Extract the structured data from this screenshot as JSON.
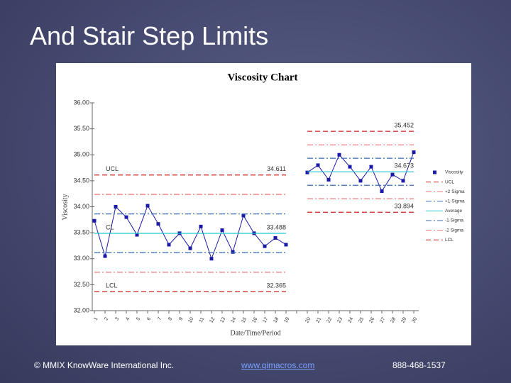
{
  "slide": {
    "title": "And Stair Step Limits"
  },
  "footer": {
    "copyright": "© MMIX KnowWare International Inc.",
    "url": "www.qimacros.com",
    "phone": "888-468-1537"
  },
  "chart_data": {
    "type": "line",
    "title": "Viscosity Chart",
    "x_label": "Date/Time/Period",
    "y_label": "Viscosity",
    "categories": [
      "1",
      "2",
      "3",
      "4",
      "5",
      "6",
      "7",
      "8",
      "9",
      "10",
      "11",
      "12",
      "13",
      "14",
      "15",
      "16",
      "17",
      "18",
      "19",
      null,
      "20",
      "21",
      "22",
      "23",
      "24",
      "25",
      "26",
      "27",
      "28",
      "29",
      "30"
    ],
    "ylim": [
      32,
      36
    ],
    "yticks": [
      {
        "value": 32,
        "label": "32.00"
      },
      {
        "value": 32.5,
        "label": "32.50"
      },
      {
        "value": 33,
        "label": "33.00"
      },
      {
        "value": 33.5,
        "label": "33.50"
      },
      {
        "value": 34,
        "label": "34.00"
      },
      {
        "value": 34.5,
        "label": "34.50"
      },
      {
        "value": 35,
        "label": "35.00"
      },
      {
        "value": 35.5,
        "label": "35.50"
      },
      {
        "value": 36,
        "label": "36.00"
      }
    ],
    "series": [
      {
        "name": "Viscosity",
        "color": "#1a1aa6",
        "dash": "solid",
        "markers": true,
        "values": [
          33.73,
          33.05,
          34.0,
          33.8,
          33.46,
          34.02,
          33.67,
          33.27,
          33.49,
          33.2,
          33.62,
          33.0,
          33.55,
          33.13,
          33.83,
          33.49,
          33.24,
          33.4,
          33.27,
          null,
          34.66,
          34.8,
          34.52,
          35.0,
          34.77,
          34.5,
          34.77,
          34.3,
          34.62,
          34.5,
          35.05
        ]
      },
      {
        "name": "UCL",
        "tag": "UCL",
        "color": "#cc2222",
        "dash": "dashed",
        "values": [
          34.611,
          34.611,
          34.611,
          34.611,
          34.611,
          34.611,
          34.611,
          34.611,
          34.611,
          34.611,
          34.611,
          34.611,
          34.611,
          34.611,
          34.611,
          34.611,
          34.611,
          34.611,
          34.611,
          null,
          35.452,
          35.452,
          35.452,
          35.452,
          35.452,
          35.452,
          35.452,
          35.452,
          35.452,
          35.452,
          35.452
        ]
      },
      {
        "name": "+2 Sigma",
        "color": "#ee7777",
        "dash": "dashdot",
        "values": [
          34.237,
          34.237,
          34.237,
          34.237,
          34.237,
          34.237,
          34.237,
          34.237,
          34.237,
          34.237,
          34.237,
          34.237,
          34.237,
          34.237,
          34.237,
          34.237,
          34.237,
          34.237,
          34.237,
          null,
          35.192,
          35.192,
          35.192,
          35.192,
          35.192,
          35.192,
          35.192,
          35.192,
          35.192,
          35.192,
          35.192
        ]
      },
      {
        "name": "+1 Sigma",
        "color": "#3a6ab0",
        "dash": "dashdot",
        "values": [
          33.862,
          33.862,
          33.862,
          33.862,
          33.862,
          33.862,
          33.862,
          33.862,
          33.862,
          33.862,
          33.862,
          33.862,
          33.862,
          33.862,
          33.862,
          33.862,
          33.862,
          33.862,
          33.862,
          null,
          34.933,
          34.933,
          34.933,
          34.933,
          34.933,
          34.933,
          34.933,
          34.933,
          34.933,
          34.933,
          34.933
        ]
      },
      {
        "name": "Average",
        "tag": "CL",
        "color": "#22c8d0",
        "dash": "solid",
        "values": [
          33.488,
          33.488,
          33.488,
          33.488,
          33.488,
          33.488,
          33.488,
          33.488,
          33.488,
          33.488,
          33.488,
          33.488,
          33.488,
          33.488,
          33.488,
          33.488,
          33.488,
          33.488,
          33.488,
          null,
          34.673,
          34.673,
          34.673,
          34.673,
          34.673,
          34.673,
          34.673,
          34.673,
          34.673,
          34.673,
          34.673
        ]
      },
      {
        "name": "-1 Sigma",
        "color": "#3a6ab0",
        "dash": "dashdot",
        "values": [
          33.114,
          33.114,
          33.114,
          33.114,
          33.114,
          33.114,
          33.114,
          33.114,
          33.114,
          33.114,
          33.114,
          33.114,
          33.114,
          33.114,
          33.114,
          33.114,
          33.114,
          33.114,
          33.114,
          null,
          34.413,
          34.413,
          34.413,
          34.413,
          34.413,
          34.413,
          34.413,
          34.413,
          34.413,
          34.413,
          34.413
        ]
      },
      {
        "name": "-2 Sigma",
        "color": "#ee7777",
        "dash": "dashdot",
        "values": [
          32.739,
          32.739,
          32.739,
          32.739,
          32.739,
          32.739,
          32.739,
          32.739,
          32.739,
          32.739,
          32.739,
          32.739,
          32.739,
          32.739,
          32.739,
          32.739,
          32.739,
          32.739,
          32.739,
          null,
          34.154,
          34.154,
          34.154,
          34.154,
          34.154,
          34.154,
          34.154,
          34.154,
          34.154,
          34.154,
          34.154
        ]
      },
      {
        "name": "LCL",
        "tag": "LCL",
        "color": "#cc2222",
        "dash": "dashed",
        "values": [
          32.365,
          32.365,
          32.365,
          32.365,
          32.365,
          32.365,
          32.365,
          32.365,
          32.365,
          32.365,
          32.365,
          32.365,
          32.365,
          32.365,
          32.365,
          32.365,
          32.365,
          32.365,
          32.365,
          null,
          33.894,
          33.894,
          33.894,
          33.894,
          33.894,
          33.894,
          33.894,
          33.894,
          33.894,
          33.894,
          33.894
        ]
      }
    ]
  }
}
